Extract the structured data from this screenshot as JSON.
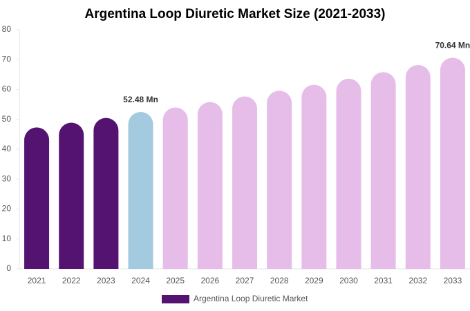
{
  "chart_data": {
    "type": "bar",
    "title": "Argentina Loop Diuretic Market Size (2021-2033)",
    "categories": [
      "2021",
      "2022",
      "2023",
      "2024",
      "2025",
      "2026",
      "2027",
      "2028",
      "2029",
      "2030",
      "2031",
      "2032",
      "2033"
    ],
    "series": [
      {
        "name": "Argentina Loop Diuretic Market",
        "color": "#541370",
        "values": [
          47.3,
          48.9,
          50.5,
          52.48,
          54.0,
          55.8,
          57.7,
          59.6,
          61.6,
          63.6,
          65.8,
          68.2,
          70.64
        ],
        "value_labels": [
          null,
          null,
          null,
          "52.48 Mn",
          null,
          null,
          null,
          null,
          null,
          null,
          null,
          null,
          "70.64 Mn"
        ],
        "colors": [
          "#541370",
          "#541370",
          "#541370",
          "#a4cadf",
          "#e6bde9",
          "#e6bde9",
          "#e6bde9",
          "#e6bde9",
          "#e6bde9",
          "#e6bde9",
          "#e6bde9",
          "#e6bde9",
          "#e6bde9"
        ]
      }
    ],
    "ylim": [
      0,
      80
    ],
    "yticks": [
      0,
      10,
      20,
      30,
      40,
      50,
      60,
      70,
      80
    ],
    "grid": false,
    "legend": "bottom"
  }
}
